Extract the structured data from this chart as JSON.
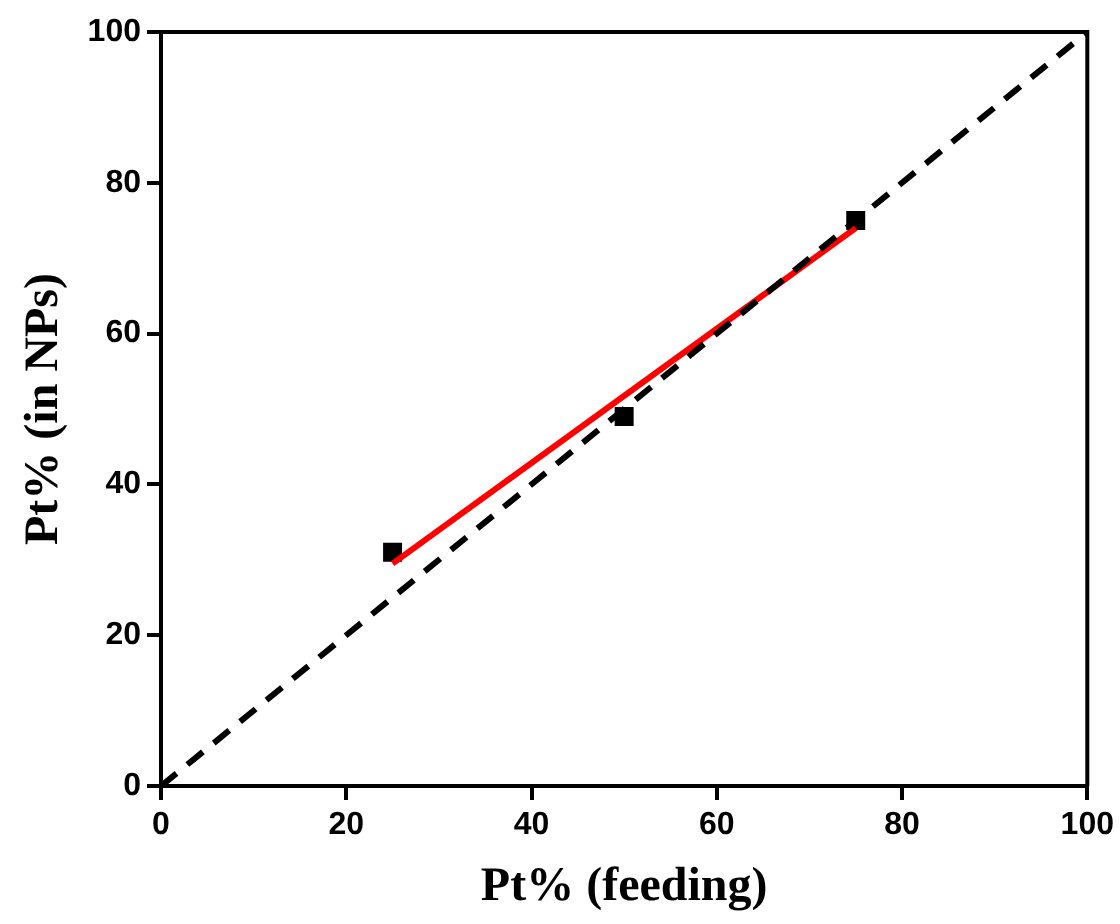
{
  "chart_data": {
    "type": "scatter",
    "xlabel": "Pt% (feeding)",
    "ylabel": "Pt% (in NPs)",
    "xlim": [
      0,
      100
    ],
    "ylim": [
      0,
      100
    ],
    "xticks": [
      0,
      20,
      40,
      60,
      80,
      100
    ],
    "yticks": [
      0,
      20,
      40,
      60,
      80,
      100
    ],
    "grid": false,
    "legend": false,
    "series": [
      {
        "type": "line",
        "color": "#000000",
        "line_style": "dashed",
        "marker": "none",
        "x": [
          0,
          100
        ],
        "values": [
          0,
          100
        ]
      },
      {
        "type": "line",
        "color": "#ff0000",
        "line_style": "solid",
        "marker": "none",
        "x": [
          25,
          75
        ],
        "values": [
          29.5,
          74
        ]
      },
      {
        "type": "scatter",
        "color": "#000000",
        "marker": "square",
        "x": [
          25,
          50,
          75
        ],
        "values": [
          31,
          49,
          75
        ]
      }
    ]
  }
}
